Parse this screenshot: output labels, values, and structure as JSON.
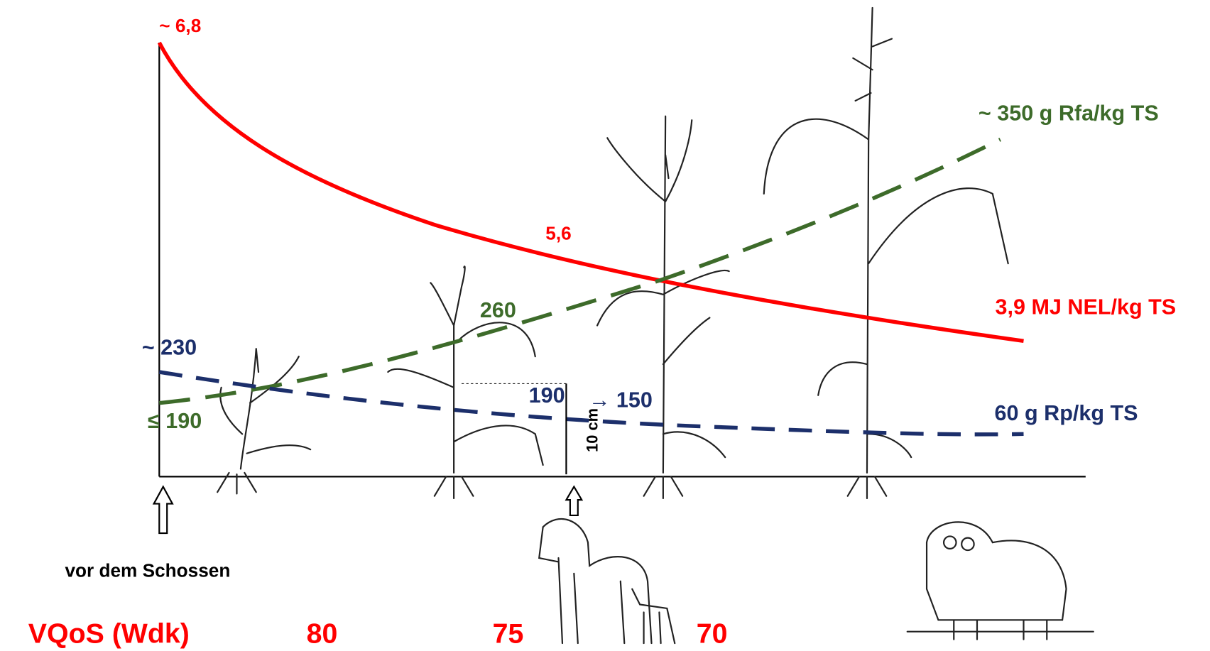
{
  "energy": {
    "start": "~ 6,8",
    "middle": "5,6",
    "end": "3,9 MJ NEL/kg TS"
  },
  "fibre": {
    "start": "≤ 190",
    "middle": "260",
    "end": "~ 350 g Rfa/kg TS"
  },
  "protein": {
    "start": "~ 230",
    "middle_a": "190",
    "middle_b": "→ 150",
    "end": "60 g Rp/kg TS"
  },
  "height_note": "10 cm",
  "stage": "vor dem Schossen",
  "vqos": {
    "label": "VQoS (Wdk)",
    "values": [
      "80",
      "75",
      "70"
    ]
  }
}
